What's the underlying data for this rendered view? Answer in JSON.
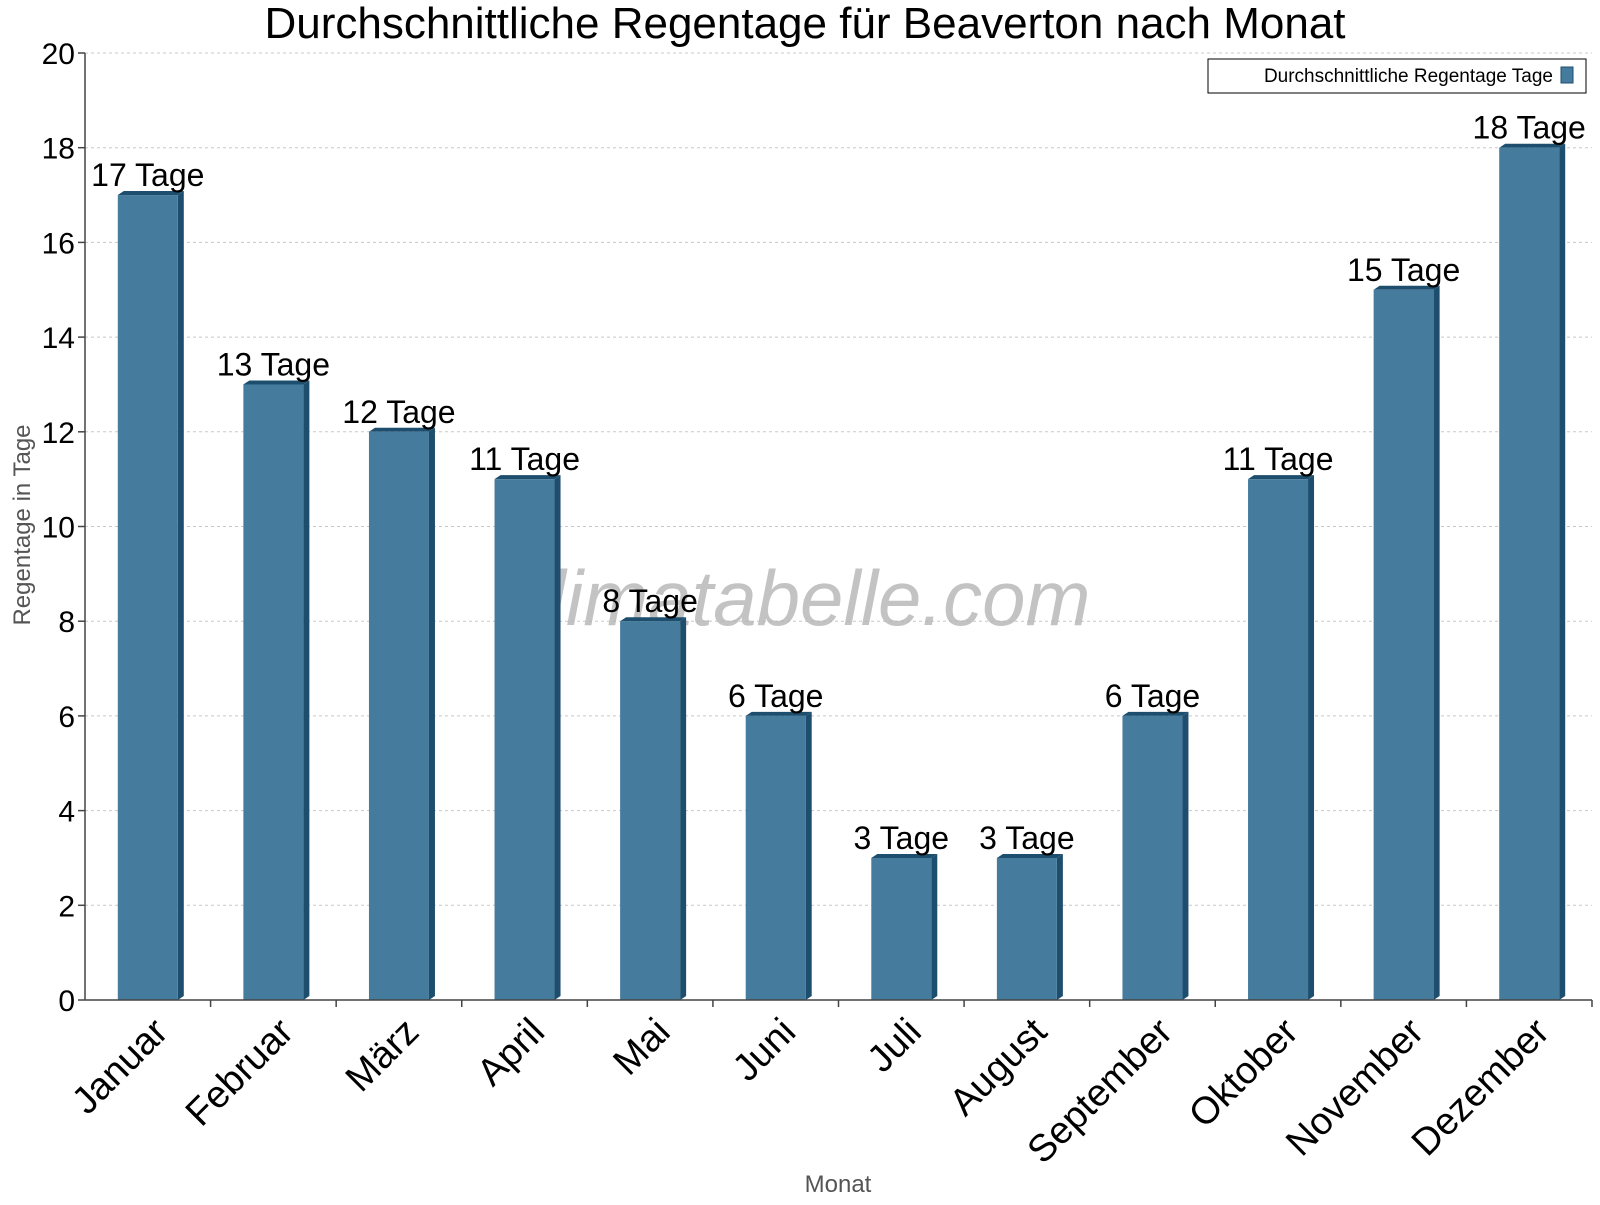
{
  "chart_data": {
    "type": "bar",
    "title": "Durchschnittliche Regentage für Beaverton nach Monat",
    "xlabel": "Monat",
    "ylabel": "Regentage in Tage",
    "categories": [
      "Januar",
      "Februar",
      "März",
      "April",
      "Mai",
      "Juni",
      "Juli",
      "August",
      "September",
      "Oktober",
      "November",
      "Dezember"
    ],
    "series": [
      {
        "name": "Durchschnittliche Regentage Tage",
        "values": [
          17,
          13,
          12,
          11,
          8,
          6,
          3,
          3,
          6,
          11,
          15,
          18
        ],
        "labels": [
          "17 Tage",
          "13 Tage",
          "12 Tage",
          "11 Tage",
          "8 Tage",
          "6 Tage",
          "3 Tage",
          "3 Tage",
          "6 Tage",
          "11 Tage",
          "15 Tage",
          "18 Tage"
        ]
      }
    ],
    "ylim": [
      0,
      20
    ],
    "yticks": [
      "0",
      "2",
      "4",
      "6",
      "8",
      "10",
      "12",
      "14",
      "16",
      "18",
      "20"
    ],
    "grid": true,
    "legend_position": "top-right",
    "colors": {
      "bar": "#457b9d",
      "bar_side": "#1d4e6e",
      "grid": "#c8c8c8",
      "axis": "#444444"
    },
    "watermark": "klimatabelle.com"
  }
}
